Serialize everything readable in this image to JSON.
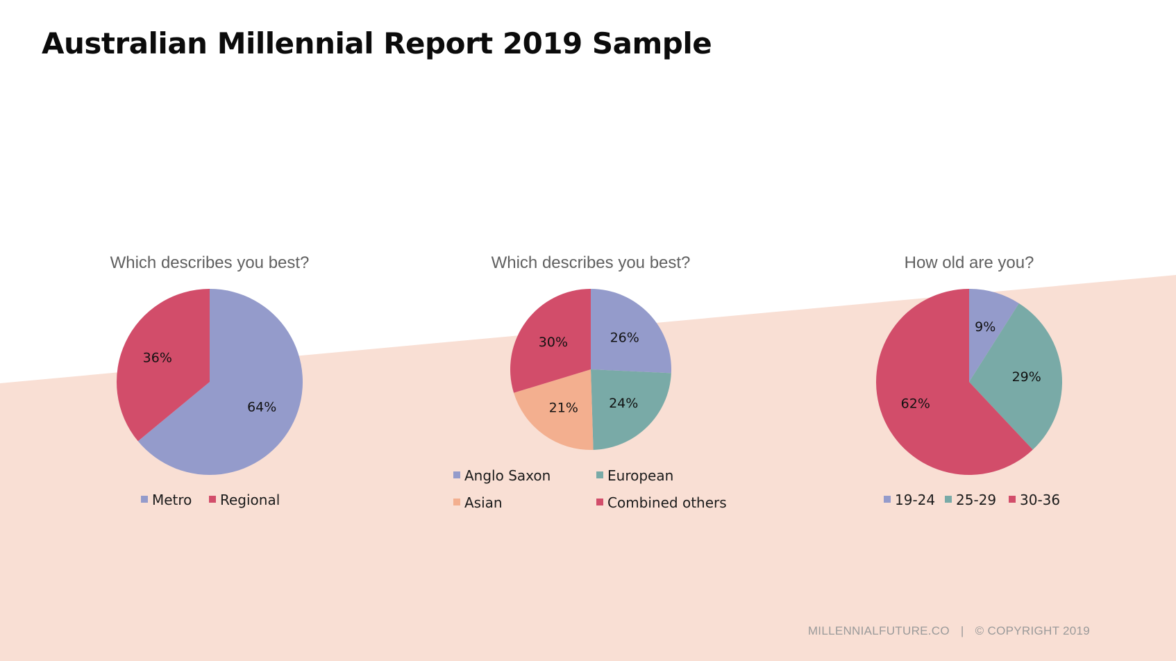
{
  "page": {
    "title": "Australian Millennial Report 2019 Sample",
    "background_accent": "#f9dfd4",
    "footer_site": "MILLENNIALFUTURE.CO",
    "footer_separator": "|",
    "footer_copyright": "© COPYRIGHT 2019"
  },
  "chart_data": [
    {
      "type": "pie",
      "title": "Which describes you best?",
      "categories": [
        "Metro",
        "Regional"
      ],
      "values": [
        64,
        36
      ],
      "labels": [
        "64%",
        "36%"
      ],
      "colors": [
        "#949bcb",
        "#d24d6a"
      ],
      "legend": "bottom",
      "legend_columns": 2
    },
    {
      "type": "pie",
      "title": "Which describes you best?",
      "categories": [
        "Anglo Saxon",
        "European",
        "Asian",
        "Combined others"
      ],
      "values": [
        26,
        24,
        21,
        30
      ],
      "labels": [
        "26%",
        "24%",
        "21%",
        "30%"
      ],
      "colors": [
        "#949bcb",
        "#79aaa7",
        "#f3af8f",
        "#d24d6a"
      ],
      "legend": "bottom",
      "legend_columns": 2
    },
    {
      "type": "pie",
      "title": "How old are you?",
      "categories": [
        "19-24",
        "25-29",
        "30-36"
      ],
      "values": [
        9,
        29,
        62
      ],
      "labels": [
        "9%",
        "29%",
        "62%"
      ],
      "colors": [
        "#949bcb",
        "#79aaa7",
        "#d24d6a"
      ],
      "legend": "bottom",
      "legend_columns": 3
    }
  ]
}
